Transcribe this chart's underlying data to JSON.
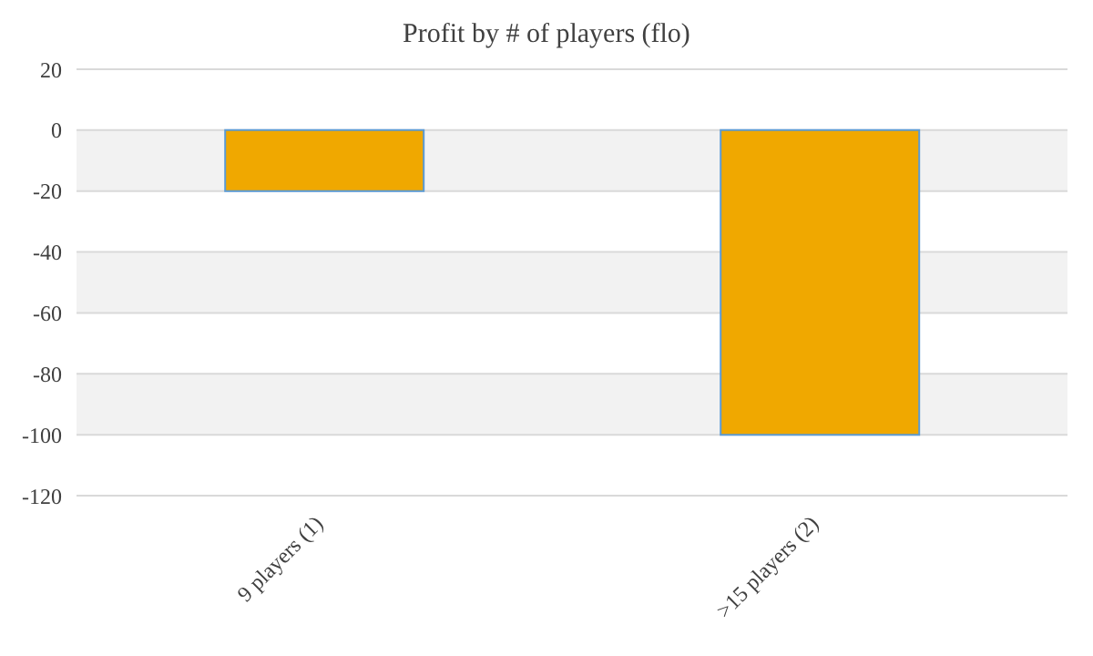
{
  "chart_data": {
    "type": "bar",
    "title": "Profit by # of players  (flo)",
    "categories": [
      "9 players (1)",
      ">15 players (2)"
    ],
    "values": [
      -20,
      -100
    ],
    "color": "#f0a800",
    "ylim": [
      -120,
      20
    ],
    "yticks": [
      -120,
      -100,
      -80,
      -60,
      -40,
      -20,
      0,
      20
    ],
    "grid": "y"
  }
}
